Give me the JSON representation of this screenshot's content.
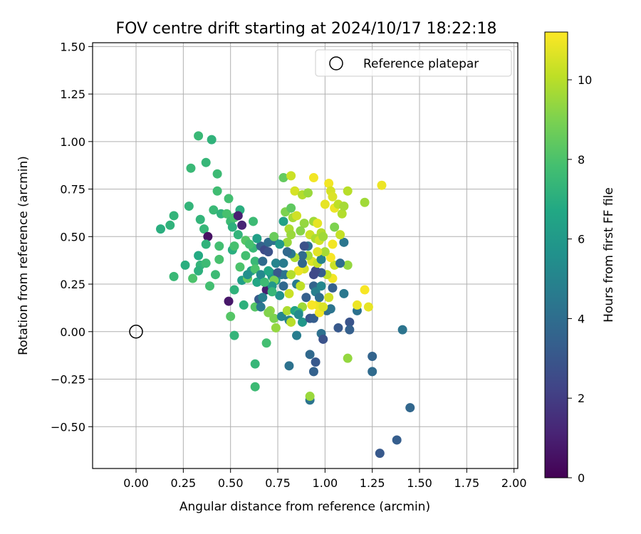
{
  "chart_data": {
    "type": "scatter",
    "title": "FOV centre drift starting at 2024/10/17 18:22:18",
    "xlabel": "Angular distance from reference (arcmin)",
    "ylabel": "Rotation from reference (arcmin)",
    "xlim": [
      -0.23,
      2.02
    ],
    "ylim": [
      -0.72,
      1.52
    ],
    "xticks": [
      0.0,
      0.25,
      0.5,
      0.75,
      1.0,
      1.25,
      1.5,
      1.75,
      2.0
    ],
    "xtick_labels": [
      "0.00",
      "0.25",
      "0.50",
      "0.75",
      "1.00",
      "1.25",
      "1.50",
      "1.75",
      "2.00"
    ],
    "yticks": [
      -0.5,
      -0.25,
      0.0,
      0.25,
      0.5,
      0.75,
      1.0,
      1.25,
      1.5
    ],
    "ytick_labels": [
      "−0.50",
      "−0.25",
      "0.00",
      "0.25",
      "0.50",
      "0.75",
      "1.00",
      "1.25",
      "1.50"
    ],
    "grid": true,
    "legend": {
      "position": "top-right",
      "entries": [
        {
          "label": "Reference platepar",
          "marker": "open-circle"
        }
      ]
    },
    "reference_point": {
      "x": 0.0,
      "y": 0.0
    },
    "colorbar": {
      "label": "Hours from first FF file",
      "colormap": "viridis",
      "range": [
        0,
        11.2
      ],
      "ticks": [
        0,
        2,
        4,
        6,
        8,
        10
      ],
      "tick_labels": [
        "0",
        "2",
        "4",
        "6",
        "8",
        "10"
      ]
    },
    "points": [
      {
        "x": 0.28,
        "y": 0.66,
        "c": 7.3
      },
      {
        "x": 0.33,
        "y": 1.03,
        "c": 7.5
      },
      {
        "x": 0.4,
        "y": 1.01,
        "c": 7.2
      },
      {
        "x": 0.37,
        "y": 0.89,
        "c": 7.4
      },
      {
        "x": 0.29,
        "y": 0.86,
        "c": 7.5
      },
      {
        "x": 0.43,
        "y": 0.83,
        "c": 7.6
      },
      {
        "x": 0.43,
        "y": 0.74,
        "c": 7.7
      },
      {
        "x": 0.49,
        "y": 0.7,
        "c": 7.8
      },
      {
        "x": 0.2,
        "y": 0.61,
        "c": 7.3
      },
      {
        "x": 0.18,
        "y": 0.56,
        "c": 7.2
      },
      {
        "x": 0.13,
        "y": 0.54,
        "c": 7.0
      },
      {
        "x": 0.34,
        "y": 0.59,
        "c": 7.3
      },
      {
        "x": 0.36,
        "y": 0.54,
        "c": 7.4
      },
      {
        "x": 0.41,
        "y": 0.64,
        "c": 7.5
      },
      {
        "x": 0.45,
        "y": 0.62,
        "c": 7.2
      },
      {
        "x": 0.48,
        "y": 0.62,
        "c": 7.9
      },
      {
        "x": 0.5,
        "y": 0.58,
        "c": 7.6
      },
      {
        "x": 0.52,
        "y": 0.6,
        "c": 7.9
      },
      {
        "x": 0.55,
        "y": 0.64,
        "c": 7.0
      },
      {
        "x": 0.51,
        "y": 0.55,
        "c": 7.1
      },
      {
        "x": 0.54,
        "y": 0.51,
        "c": 7.3
      },
      {
        "x": 0.38,
        "y": 0.5,
        "c": 0.5
      },
      {
        "x": 0.54,
        "y": 0.61,
        "c": 1.0
      },
      {
        "x": 0.56,
        "y": 0.56,
        "c": 1.2
      },
      {
        "x": 0.49,
        "y": 0.16,
        "c": 0.7
      },
      {
        "x": 0.69,
        "y": 0.22,
        "c": 0.9
      },
      {
        "x": 0.37,
        "y": 0.46,
        "c": 7.2
      },
      {
        "x": 0.33,
        "y": 0.4,
        "c": 6.8
      },
      {
        "x": 0.26,
        "y": 0.35,
        "c": 7.0
      },
      {
        "x": 0.34,
        "y": 0.35,
        "c": 7.3
      },
      {
        "x": 0.37,
        "y": 0.36,
        "c": 7.6
      },
      {
        "x": 0.33,
        "y": 0.32,
        "c": 7.1
      },
      {
        "x": 0.3,
        "y": 0.28,
        "c": 8.0
      },
      {
        "x": 0.2,
        "y": 0.29,
        "c": 7.5
      },
      {
        "x": 0.39,
        "y": 0.24,
        "c": 7.8
      },
      {
        "x": 0.42,
        "y": 0.3,
        "c": 7.6
      },
      {
        "x": 0.44,
        "y": 0.45,
        "c": 7.8
      },
      {
        "x": 0.44,
        "y": 0.38,
        "c": 7.9
      },
      {
        "x": 0.51,
        "y": 0.43,
        "c": 7.0
      },
      {
        "x": 0.52,
        "y": 0.45,
        "c": 7.9
      },
      {
        "x": 0.55,
        "y": 0.34,
        "c": 8.0
      },
      {
        "x": 0.56,
        "y": 0.27,
        "c": 6.3
      },
      {
        "x": 0.52,
        "y": 0.22,
        "c": 7.2
      },
      {
        "x": 0.5,
        "y": 0.08,
        "c": 8.2
      },
      {
        "x": 0.52,
        "y": -0.02,
        "c": 7.3
      },
      {
        "x": 0.57,
        "y": 0.14,
        "c": 7.1
      },
      {
        "x": 0.59,
        "y": 0.28,
        "c": 8.6
      },
      {
        "x": 0.58,
        "y": 0.4,
        "c": 7.8
      },
      {
        "x": 0.62,
        "y": 0.44,
        "c": 7.5
      },
      {
        "x": 0.62,
        "y": 0.58,
        "c": 7.6
      },
      {
        "x": 0.63,
        "y": 0.13,
        "c": 8.2
      },
      {
        "x": 0.63,
        "y": 0.37,
        "c": 7.5
      },
      {
        "x": 0.63,
        "y": -0.17,
        "c": 7.4
      },
      {
        "x": 0.63,
        "y": -0.29,
        "c": 7.6
      },
      {
        "x": 0.69,
        "y": -0.06,
        "c": 7.8
      },
      {
        "x": 0.61,
        "y": 0.32,
        "c": 6.3
      },
      {
        "x": 0.64,
        "y": 0.26,
        "c": 6.6
      },
      {
        "x": 0.66,
        "y": 0.45,
        "c": 3.5
      },
      {
        "x": 0.68,
        "y": 0.43,
        "c": 2.5
      },
      {
        "x": 0.7,
        "y": 0.42,
        "c": 2.8
      },
      {
        "x": 0.7,
        "y": 0.47,
        "c": 3.9
      },
      {
        "x": 0.73,
        "y": 0.48,
        "c": 4.2
      },
      {
        "x": 0.74,
        "y": 0.36,
        "c": 5.0
      },
      {
        "x": 0.71,
        "y": 0.31,
        "c": 5.3
      },
      {
        "x": 0.72,
        "y": 0.29,
        "c": 5.8
      },
      {
        "x": 0.74,
        "y": 0.27,
        "c": 6.2
      },
      {
        "x": 0.77,
        "y": 0.3,
        "c": 4.8
      },
      {
        "x": 0.78,
        "y": 0.24,
        "c": 3.8
      },
      {
        "x": 0.65,
        "y": 0.17,
        "c": 3.2
      },
      {
        "x": 0.66,
        "y": 0.13,
        "c": 4.5
      },
      {
        "x": 0.71,
        "y": 0.11,
        "c": 9.3
      },
      {
        "x": 0.73,
        "y": 0.07,
        "c": 9.0
      },
      {
        "x": 0.74,
        "y": 0.02,
        "c": 9.4
      },
      {
        "x": 0.77,
        "y": 0.08,
        "c": 5.1
      },
      {
        "x": 0.8,
        "y": 0.11,
        "c": 9.8
      },
      {
        "x": 0.81,
        "y": 0.06,
        "c": 4.9
      },
      {
        "x": 0.82,
        "y": 0.05,
        "c": 10.0
      },
      {
        "x": 0.84,
        "y": 0.11,
        "c": 6.4
      },
      {
        "x": 0.85,
        "y": -0.02,
        "c": 4.7
      },
      {
        "x": 0.81,
        "y": -0.18,
        "c": 4.2
      },
      {
        "x": 0.88,
        "y": 0.05,
        "c": 5.9
      },
      {
        "x": 0.88,
        "y": 0.13,
        "c": 9.6
      },
      {
        "x": 0.86,
        "y": 0.1,
        "c": 7.2
      },
      {
        "x": 0.9,
        "y": 0.18,
        "c": 3.4
      },
      {
        "x": 0.92,
        "y": 0.07,
        "c": 3.0
      },
      {
        "x": 0.94,
        "y": 0.07,
        "c": 3.3
      },
      {
        "x": 0.92,
        "y": -0.12,
        "c": 3.8
      },
      {
        "x": 0.95,
        "y": -0.16,
        "c": 3.1
      },
      {
        "x": 0.94,
        "y": -0.21,
        "c": 3.5
      },
      {
        "x": 0.92,
        "y": -0.36,
        "c": 4.3
      },
      {
        "x": 0.92,
        "y": -0.34,
        "c": 9.5
      },
      {
        "x": 0.98,
        "y": -0.01,
        "c": 4.1
      },
      {
        "x": 0.99,
        "y": -0.04,
        "c": 2.8
      },
      {
        "x": 1.01,
        "y": 0.11,
        "c": 3.9
      },
      {
        "x": 1.03,
        "y": 0.12,
        "c": 4.3
      },
      {
        "x": 1.07,
        "y": 0.02,
        "c": 3.1
      },
      {
        "x": 1.13,
        "y": 0.05,
        "c": 2.9
      },
      {
        "x": 1.13,
        "y": 0.01,
        "c": 3.4
      },
      {
        "x": 1.17,
        "y": 0.11,
        "c": 4.2
      },
      {
        "x": 1.17,
        "y": 0.14,
        "c": 10.9
      },
      {
        "x": 1.21,
        "y": 0.22,
        "c": 11.1
      },
      {
        "x": 1.23,
        "y": 0.13,
        "c": 10.8
      },
      {
        "x": 1.12,
        "y": -0.14,
        "c": 9.4
      },
      {
        "x": 1.25,
        "y": -0.13,
        "c": 3.6
      },
      {
        "x": 1.25,
        "y": -0.21,
        "c": 3.9
      },
      {
        "x": 1.38,
        "y": -0.57,
        "c": 3.3
      },
      {
        "x": 1.29,
        "y": -0.64,
        "c": 3.1
      },
      {
        "x": 1.45,
        "y": -0.4,
        "c": 3.7
      },
      {
        "x": 1.41,
        "y": 0.01,
        "c": 4.3
      },
      {
        "x": 1.1,
        "y": 0.2,
        "c": 4.5
      },
      {
        "x": 1.12,
        "y": 0.35,
        "c": 9.4
      },
      {
        "x": 1.1,
        "y": 0.47,
        "c": 4.4
      },
      {
        "x": 1.08,
        "y": 0.51,
        "c": 10.2
      },
      {
        "x": 1.04,
        "y": 0.46,
        "c": 11.0
      },
      {
        "x": 1.05,
        "y": 0.35,
        "c": 10.3
      },
      {
        "x": 1.04,
        "y": 0.28,
        "c": 11.0
      },
      {
        "x": 1.03,
        "y": 0.39,
        "c": 11.1
      },
      {
        "x": 1.01,
        "y": 0.3,
        "c": 10.1
      },
      {
        "x": 1.04,
        "y": 0.23,
        "c": 3.4
      },
      {
        "x": 1.02,
        "y": 0.18,
        "c": 10.4
      },
      {
        "x": 0.96,
        "y": 0.14,
        "c": 10.9
      },
      {
        "x": 0.97,
        "y": 0.1,
        "c": 11.0
      },
      {
        "x": 0.99,
        "y": 0.13,
        "c": 10.6
      },
      {
        "x": 0.93,
        "y": 0.14,
        "c": 11.1
      },
      {
        "x": 0.94,
        "y": 0.24,
        "c": 3.6
      },
      {
        "x": 0.95,
        "y": 0.21,
        "c": 4.8
      },
      {
        "x": 0.98,
        "y": 0.24,
        "c": 5.1
      },
      {
        "x": 0.98,
        "y": 0.31,
        "c": 3.3
      },
      {
        "x": 0.95,
        "y": 0.32,
        "c": 2.5
      },
      {
        "x": 0.94,
        "y": 0.3,
        "c": 2.4
      },
      {
        "x": 0.93,
        "y": 0.37,
        "c": 10.6
      },
      {
        "x": 0.96,
        "y": 0.36,
        "c": 10.2
      },
      {
        "x": 0.98,
        "y": 0.38,
        "c": 4.9
      },
      {
        "x": 0.91,
        "y": 0.4,
        "c": 9.6
      },
      {
        "x": 0.88,
        "y": 0.4,
        "c": 3.9
      },
      {
        "x": 0.89,
        "y": 0.33,
        "c": 10.5
      },
      {
        "x": 0.86,
        "y": 0.32,
        "c": 10.9
      },
      {
        "x": 0.84,
        "y": 0.39,
        "c": 9.8
      },
      {
        "x": 0.82,
        "y": 0.41,
        "c": 4.5
      },
      {
        "x": 0.8,
        "y": 0.42,
        "c": 3.8
      },
      {
        "x": 0.8,
        "y": 0.47,
        "c": 9.5
      },
      {
        "x": 0.81,
        "y": 0.54,
        "c": 9.8
      },
      {
        "x": 0.82,
        "y": 0.51,
        "c": 9.5
      },
      {
        "x": 0.78,
        "y": 0.58,
        "c": 6.4
      },
      {
        "x": 0.79,
        "y": 0.63,
        "c": 9.0
      },
      {
        "x": 0.82,
        "y": 0.65,
        "c": 8.4
      },
      {
        "x": 0.83,
        "y": 0.6,
        "c": 9.7
      },
      {
        "x": 0.85,
        "y": 0.61,
        "c": 10.4
      },
      {
        "x": 0.78,
        "y": 0.81,
        "c": 8.5
      },
      {
        "x": 0.82,
        "y": 0.82,
        "c": 10.3
      },
      {
        "x": 0.84,
        "y": 0.74,
        "c": 10.5
      },
      {
        "x": 0.88,
        "y": 0.72,
        "c": 9.9
      },
      {
        "x": 0.91,
        "y": 0.73,
        "c": 9.5
      },
      {
        "x": 0.94,
        "y": 0.81,
        "c": 11.0
      },
      {
        "x": 0.94,
        "y": 0.58,
        "c": 9.6
      },
      {
        "x": 0.96,
        "y": 0.57,
        "c": 10.8
      },
      {
        "x": 0.92,
        "y": 0.51,
        "c": 10.3
      },
      {
        "x": 0.95,
        "y": 0.49,
        "c": 9.8
      },
      {
        "x": 0.97,
        "y": 0.48,
        "c": 10.4
      },
      {
        "x": 0.98,
        "y": 0.52,
        "c": 9.9
      },
      {
        "x": 0.99,
        "y": 0.5,
        "c": 9.6
      },
      {
        "x": 1.0,
        "y": 0.67,
        "c": 10.8
      },
      {
        "x": 1.02,
        "y": 0.78,
        "c": 11.0
      },
      {
        "x": 1.03,
        "y": 0.74,
        "c": 10.5
      },
      {
        "x": 1.04,
        "y": 0.71,
        "c": 10.6
      },
      {
        "x": 1.05,
        "y": 0.65,
        "c": 10.9
      },
      {
        "x": 1.07,
        "y": 0.67,
        "c": 10.1
      },
      {
        "x": 1.09,
        "y": 0.62,
        "c": 9.9
      },
      {
        "x": 1.1,
        "y": 0.66,
        "c": 9.7
      },
      {
        "x": 1.12,
        "y": 0.74,
        "c": 10.0
      },
      {
        "x": 1.21,
        "y": 0.68,
        "c": 9.6
      },
      {
        "x": 1.3,
        "y": 0.77,
        "c": 10.9
      },
      {
        "x": 0.89,
        "y": 0.57,
        "c": 9.4
      },
      {
        "x": 0.87,
        "y": 0.53,
        "c": 9.2
      },
      {
        "x": 0.73,
        "y": 0.5,
        "c": 8.6
      },
      {
        "x": 0.76,
        "y": 0.46,
        "c": 6.0
      },
      {
        "x": 0.78,
        "y": 0.36,
        "c": 4.6
      },
      {
        "x": 0.75,
        "y": 0.31,
        "c": 3.1
      },
      {
        "x": 0.73,
        "y": 0.27,
        "c": 8.9
      },
      {
        "x": 0.72,
        "y": 0.24,
        "c": 5.9
      },
      {
        "x": 0.79,
        "y": 0.3,
        "c": 4.3
      },
      {
        "x": 0.82,
        "y": 0.3,
        "c": 9.9
      },
      {
        "x": 0.85,
        "y": 0.25,
        "c": 4.6
      },
      {
        "x": 0.87,
        "y": 0.24,
        "c": 10.1
      },
      {
        "x": 0.81,
        "y": 0.2,
        "c": 10.3
      },
      {
        "x": 0.76,
        "y": 0.19,
        "c": 5.6
      },
      {
        "x": 0.72,
        "y": 0.21,
        "c": 7.4
      },
      {
        "x": 0.67,
        "y": 0.18,
        "c": 4.8
      },
      {
        "x": 0.7,
        "y": 0.1,
        "c": 9.1
      },
      {
        "x": 0.58,
        "y": 0.48,
        "c": 8.2
      },
      {
        "x": 0.6,
        "y": 0.46,
        "c": 7.9
      },
      {
        "x": 0.64,
        "y": 0.49,
        "c": 6.3
      },
      {
        "x": 0.67,
        "y": 0.37,
        "c": 3.9
      },
      {
        "x": 0.63,
        "y": 0.33,
        "c": 8.0
      },
      {
        "x": 0.66,
        "y": 0.3,
        "c": 5.2
      },
      {
        "x": 0.68,
        "y": 0.26,
        "c": 7.6
      },
      {
        "x": 0.7,
        "y": 0.32,
        "c": 6.6
      },
      {
        "x": 0.59,
        "y": 0.3,
        "c": 5.5
      },
      {
        "x": 1.0,
        "y": 0.42,
        "c": 9.7
      },
      {
        "x": 0.91,
        "y": 0.45,
        "c": 4.2
      },
      {
        "x": 0.88,
        "y": 0.36,
        "c": 3.7
      },
      {
        "x": 0.89,
        "y": 0.45,
        "c": 2.8
      },
      {
        "x": 0.97,
        "y": 0.18,
        "c": 4.0
      },
      {
        "x": 0.86,
        "y": 0.09,
        "c": 5.3
      },
      {
        "x": 1.08,
        "y": 0.36,
        "c": 4.0
      },
      {
        "x": 0.96,
        "y": 0.42,
        "c": 10.7
      },
      {
        "x": 1.05,
        "y": 0.55,
        "c": 9.0
      }
    ]
  }
}
